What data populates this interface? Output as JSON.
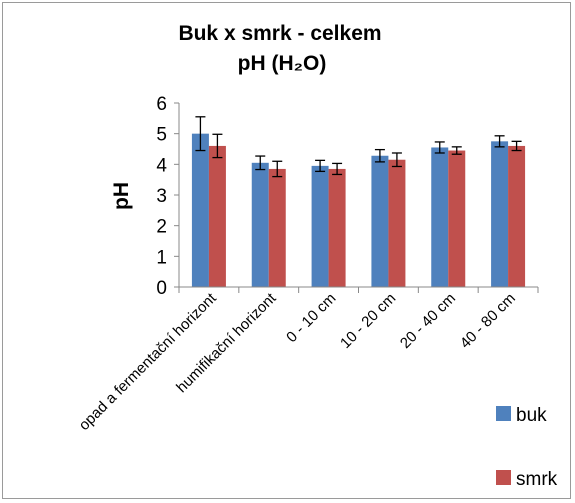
{
  "chart_data": {
    "type": "bar",
    "title": "Buk x smrk - celkem",
    "subtitle": "pH (H₂O)",
    "xlabel": "",
    "ylabel": "pH",
    "ylim": [
      0,
      6
    ],
    "yticks": [
      "0",
      "1",
      "2",
      "3",
      "4",
      "5",
      "6"
    ],
    "grid": false,
    "legend_position": "right",
    "categories": [
      "opad a fermentační horizont",
      "humifikační horizont",
      "0 - 10 cm",
      "10 - 20 cm",
      "20 - 40 cm",
      "40 - 80 cm"
    ],
    "series": [
      {
        "name": "buk",
        "color": "#4F81BD",
        "values": [
          5.0,
          4.05,
          3.95,
          4.28,
          4.55,
          4.75
        ],
        "errors": [
          0.55,
          0.22,
          0.18,
          0.2,
          0.18,
          0.18
        ]
      },
      {
        "name": "smrk",
        "color": "#C0504D",
        "values": [
          4.6,
          3.85,
          3.85,
          4.15,
          4.45,
          4.6
        ],
        "errors": [
          0.38,
          0.25,
          0.18,
          0.22,
          0.12,
          0.15
        ]
      }
    ]
  }
}
